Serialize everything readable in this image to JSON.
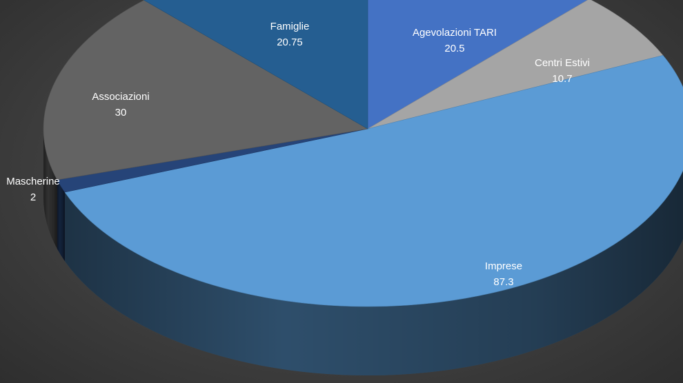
{
  "chart_data": {
    "type": "pie",
    "style": "3d",
    "slices": [
      {
        "label": "Agevolazioni TARI",
        "value": 20.5,
        "color": "#4472C4"
      },
      {
        "label": "Centri Estivi",
        "value": 10.7,
        "color": "#A5A5A5"
      },
      {
        "label": "Imprese",
        "value": 87.3,
        "color": "#5B9BD5"
      },
      {
        "label": "Mascherine",
        "value": 2,
        "color": "#264478"
      },
      {
        "label": "Associazioni",
        "value": 30,
        "color": "#636363"
      },
      {
        "label": "Famiglie",
        "value": 20.75,
        "color": "#255E91"
      }
    ]
  }
}
